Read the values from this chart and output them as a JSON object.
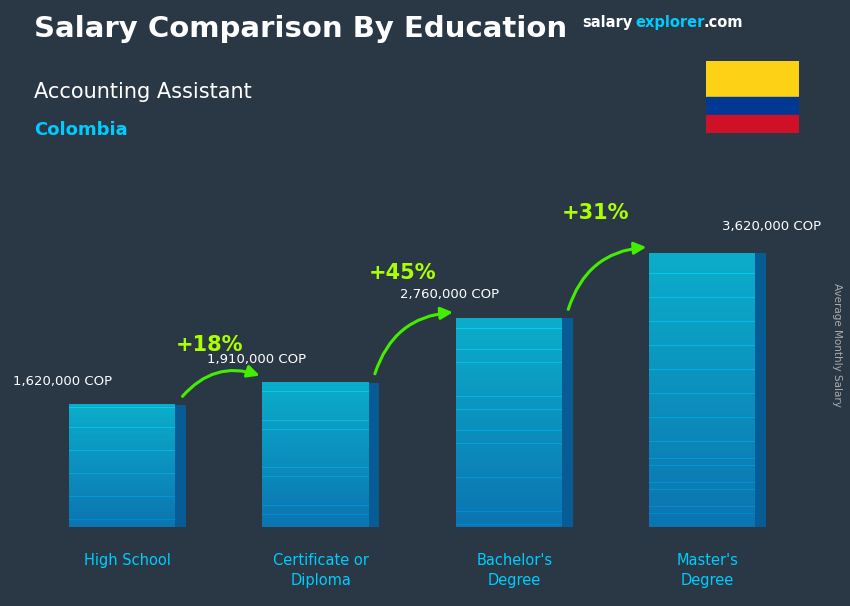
{
  "title": "Salary Comparison By Education",
  "subtitle": "Accounting Assistant",
  "country": "Colombia",
  "ylabel": "Average Monthly Salary",
  "categories": [
    "High School",
    "Certificate or\nDiploma",
    "Bachelor's\nDegree",
    "Master's\nDegree"
  ],
  "values": [
    1620000,
    1910000,
    2760000,
    3620000
  ],
  "value_labels": [
    "1,620,000 COP",
    "1,910,000 COP",
    "2,760,000 COP",
    "3,620,000 COP"
  ],
  "pct_labels": [
    "+18%",
    "+45%",
    "+31%"
  ],
  "bar_color": "#00bfff",
  "bar_alpha": 0.75,
  "bar_side_color": "#0077bb",
  "bar_top_color": "#00eeff",
  "title_color": "#ffffff",
  "subtitle_color": "#ffffff",
  "country_color": "#00ccff",
  "cat_label_color": "#00ccff",
  "value_label_color": "#ffffff",
  "pct_label_color": "#aaff00",
  "arrow_color": "#44ee00",
  "bg_color": "#2a3845",
  "figsize": [
    8.5,
    6.06
  ],
  "dpi": 100,
  "ylim": [
    0,
    4800000
  ]
}
